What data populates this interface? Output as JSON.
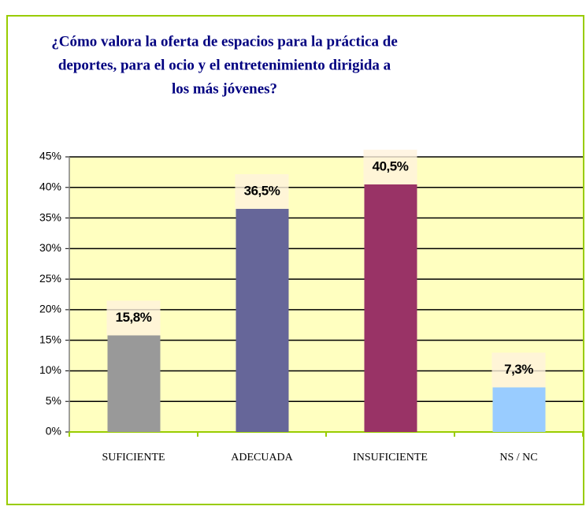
{
  "chart_data": {
    "type": "bar",
    "title": [
      "¿Cómo valora la oferta de espacios para la práctica de",
      "deportes, para el ocio y el entretenimiento dirigida a",
      "los más jóvenes?"
    ],
    "categories": [
      "SUFICIENTE",
      "ADECUADA",
      "INSUFICIENTE",
      "NS / NC"
    ],
    "values": [
      15.8,
      36.5,
      40.5,
      7.3
    ],
    "value_labels": [
      "15,8%",
      "36,5%",
      "40,5%",
      "7,3%"
    ],
    "colors": [
      "#999999",
      "#666699",
      "#993366",
      "#99ccff"
    ],
    "ylim": [
      0,
      45
    ],
    "yticks": [
      {
        "value": 0,
        "label": "0%"
      },
      {
        "value": 5,
        "label": "5%"
      },
      {
        "value": 10,
        "label": "10%"
      },
      {
        "value": 15,
        "label": "15%"
      },
      {
        "value": 20,
        "label": "20%"
      },
      {
        "value": 25,
        "label": "25%"
      },
      {
        "value": 30,
        "label": "30%"
      },
      {
        "value": 35,
        "label": "35%"
      },
      {
        "value": 40,
        "label": "40%"
      },
      {
        "value": 45,
        "label": "45%"
      }
    ],
    "grid": true
  }
}
